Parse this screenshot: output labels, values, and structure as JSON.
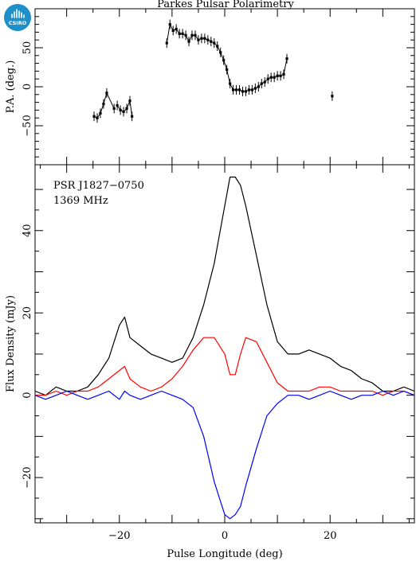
{
  "logo": {
    "text": "CSIRO",
    "color": "#1e8fc8"
  },
  "chart_data": [
    {
      "type": "scatter",
      "title": "Parkes Pulsar Polarimetry",
      "ylabel": "P.A. (deg.)",
      "xlim": [
        -36,
        36
      ],
      "ylim": [
        -100,
        100
      ],
      "ytick_values": [
        -50,
        0,
        50
      ],
      "ytick_labels": [
        "−50",
        "0",
        "50"
      ],
      "series": [
        {
          "x": [
            -24.8,
            -24.2,
            -23.6,
            -23.0,
            -22.4,
            -21.0,
            -20.4,
            -19.8,
            -19.2,
            -18.6,
            -18.0,
            -17.6,
            -11.0,
            -10.4,
            -9.8,
            -9.2,
            -8.6,
            -8.0,
            -7.4,
            -6.8,
            -6.2,
            -5.6,
            -5.0,
            -4.4,
            -3.8,
            -3.2,
            -2.6,
            -2.0,
            -1.4,
            -0.8,
            -0.2,
            0.4,
            1.0,
            1.6,
            2.2,
            2.8,
            3.4,
            4.0,
            4.6,
            5.2,
            5.8,
            6.4,
            7.0,
            7.6,
            8.2,
            8.8,
            9.4,
            10.0,
            10.6,
            11.2,
            11.8,
            20.4
          ],
          "values": [
            -38,
            -40,
            -34,
            -22,
            -8,
            -28,
            -24,
            -30,
            -32,
            -28,
            -18,
            -38,
            56,
            80,
            72,
            74,
            68,
            68,
            66,
            58,
            66,
            66,
            60,
            62,
            62,
            60,
            58,
            56,
            52,
            44,
            34,
            22,
            4,
            -4,
            -4,
            -4,
            -6,
            -6,
            -4,
            -4,
            -2,
            0,
            4,
            6,
            10,
            12,
            12,
            14,
            14,
            16,
            36,
            -12
          ],
          "color": "#000000"
        }
      ]
    },
    {
      "type": "line",
      "xlabel": "Pulse Longitude (deg)",
      "ylabel": "Flux Density (mJy)",
      "xlim": [
        -36,
        36
      ],
      "ylim": [
        -31,
        56
      ],
      "xtick_values": [
        -20,
        0,
        20
      ],
      "xtick_labels": [
        "−20",
        "0",
        "20"
      ],
      "ytick_values": [
        -20,
        0,
        20,
        40
      ],
      "ytick_labels": [
        "−20",
        "0",
        "20",
        "40"
      ],
      "annotations": [
        "PSR J1827−0750",
        "1369 MHz"
      ],
      "x": [
        -36,
        -34,
        -32,
        -30,
        -28,
        -26,
        -24,
        -22,
        -20,
        -19,
        -18,
        -16,
        -14,
        -12,
        -10,
        -8,
        -6,
        -4,
        -2,
        0,
        1,
        2,
        3,
        4,
        6,
        8,
        10,
        12,
        14,
        16,
        18,
        20,
        22,
        24,
        26,
        28,
        30,
        32,
        34,
        36
      ],
      "series": [
        {
          "color": "#000000",
          "values": [
            1,
            0,
            2,
            1,
            1,
            2,
            5,
            9,
            17,
            19,
            14,
            12,
            10,
            9,
            8,
            9,
            14,
            22,
            32,
            46,
            53,
            53,
            51,
            46,
            34,
            22,
            13,
            10,
            10,
            11,
            10,
            9,
            7,
            6,
            4,
            3,
            1,
            1,
            2,
            1
          ]
        },
        {
          "color": "#ff0000",
          "values": [
            0,
            0,
            1,
            0,
            1,
            1,
            2,
            4,
            6,
            7,
            4,
            2,
            1,
            2,
            4,
            7,
            11,
            14,
            14,
            10,
            5,
            5,
            10,
            14,
            13,
            8,
            3,
            1,
            1,
            1,
            2,
            2,
            1,
            1,
            1,
            1,
            0,
            1,
            1,
            0
          ]
        },
        {
          "color": "#0000ff",
          "values": [
            0,
            -1,
            0,
            1,
            0,
            -1,
            0,
            1,
            -1,
            1,
            0,
            -1,
            0,
            1,
            0,
            -1,
            -3,
            -10,
            -21,
            -29,
            -30,
            -29,
            -27,
            -22,
            -13,
            -5,
            -2,
            0,
            0,
            -1,
            0,
            1,
            0,
            -1,
            0,
            0,
            1,
            0,
            1,
            0
          ]
        }
      ]
    }
  ]
}
